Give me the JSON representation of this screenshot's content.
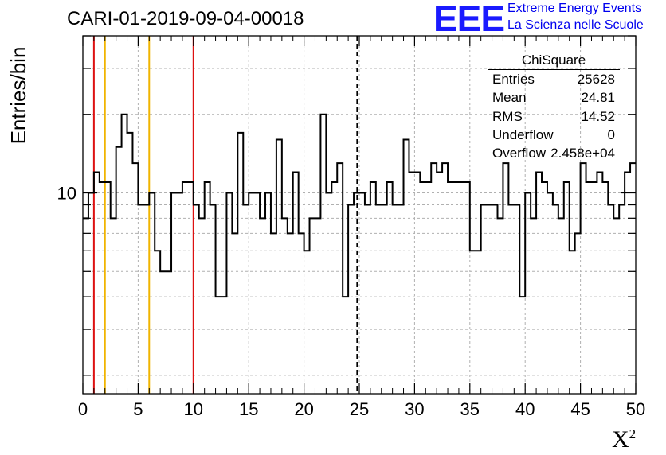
{
  "header": {
    "title": "CARI-01-2019-09-04-00018",
    "logo_text": "EEE",
    "logo_line1": "Extreme Energy Events",
    "logo_line2": "La Scienza nelle Scuole"
  },
  "stats": {
    "name": "ChiSquare",
    "rows": [
      {
        "label": "Entries",
        "value": "25628"
      },
      {
        "label": "Mean",
        "value": "24.81"
      },
      {
        "label": "RMS",
        "value": "14.52"
      },
      {
        "label": "Underflow",
        "value": "0"
      },
      {
        "label": "Overflow",
        "value": "2.458e+04"
      }
    ]
  },
  "colors": {
    "histogram": "#000000",
    "red_line": "#dd1111",
    "orange_line": "#f0b400",
    "mean_line": "#000000",
    "grid": "#b0b0b0"
  },
  "chart_data": {
    "type": "histogram",
    "title": "CARI-01-2019-09-04-00018",
    "xlabel": "X",
    "xlabel_superscript": "2",
    "ylabel": "Entries/bin",
    "y_scale": "log",
    "xlim": [
      0,
      50
    ],
    "ylim": [
      1.7,
      40
    ],
    "x_ticks": [
      0,
      5,
      10,
      15,
      20,
      25,
      30,
      35,
      40,
      45,
      50
    ],
    "y_tick_labels": [
      {
        "value": 10,
        "label": "10"
      }
    ],
    "grid": true,
    "bin_width": 0.5,
    "bin_start": 0,
    "values": [
      8,
      10,
      12,
      11,
      11,
      8,
      15,
      20,
      17,
      13,
      9,
      9,
      10,
      6,
      5,
      5,
      10,
      10,
      11,
      11,
      9,
      8,
      11,
      9,
      4,
      4,
      10,
      7,
      17,
      9,
      10,
      10,
      8,
      10,
      7,
      16,
      8,
      7,
      12,
      7,
      6,
      8,
      8,
      20,
      10,
      11,
      13,
      4,
      9,
      10,
      10,
      9,
      11,
      9,
      9,
      11,
      9,
      9,
      16,
      12,
      12,
      11,
      11,
      13,
      12,
      13,
      11,
      11,
      11,
      11,
      6,
      6,
      9,
      9,
      9,
      8,
      13,
      9,
      9,
      4,
      10,
      8,
      12,
      11,
      10,
      9,
      8,
      11,
      6,
      7,
      13,
      11,
      11,
      12,
      11,
      9,
      8,
      9,
      12,
      13
    ],
    "vertical_lines": [
      {
        "x": 1,
        "style": "solid",
        "color": "red"
      },
      {
        "x": 2,
        "style": "solid",
        "color": "orange"
      },
      {
        "x": 6,
        "style": "solid",
        "color": "orange"
      },
      {
        "x": 10,
        "style": "solid",
        "color": "red"
      },
      {
        "x": 24.81,
        "style": "dashed",
        "color": "black"
      }
    ]
  }
}
